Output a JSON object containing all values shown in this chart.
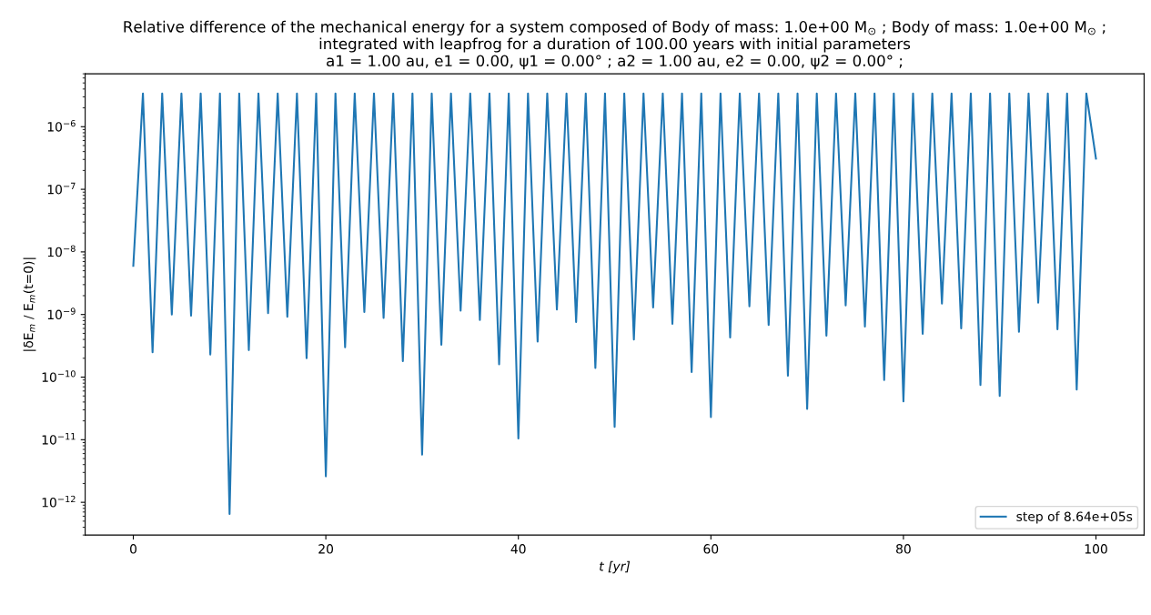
{
  "chart_data": {
    "type": "line",
    "title": "Relative difference of the mechanical energy for a system composed of Body of mass: 1.0e+00 M$_{⊙}$ ; Body of mass: 1.0e+00 M$_{⊙}$ ;\nintegrated with leapfrog for a duration of 100.00 years with initial parameters\na1 = 1.00 au, e1 = 0.00, ψ1 = 0.00° ; a2 = 1.00 au, e2 = 0.00, ψ2 = 0.00° ;",
    "xlabel": "t [yr]",
    "ylabel": "|δE$_{m}$ / E$_{m}$(t=0)|",
    "log": "y",
    "grid": false,
    "legend": "bottom right",
    "marker": "none",
    "line_style": "solid",
    "xlim": [
      -5,
      105
    ],
    "xticks": [
      0,
      20,
      40,
      60,
      80,
      100
    ],
    "ylim": [
      3e-13,
      7e-06
    ],
    "yticks": [
      {
        "value": 1e-12,
        "label": "10$^{−12}$"
      },
      {
        "value": 1e-11,
        "label": "10$^{−11}$"
      },
      {
        "value": 1e-10,
        "label": "10$^{−10}$"
      },
      {
        "value": 1e-09,
        "label": "10$^{−9}$"
      },
      {
        "value": 1e-08,
        "label": "10$^{−8}$"
      },
      {
        "value": 1e-07,
        "label": "10$^{−7}$"
      },
      {
        "value": 1e-06,
        "label": "10$^{−6}$"
      }
    ],
    "series": [
      {
        "name": "step of 8.64e+05s",
        "color": "#1f77b4",
        "x": [
          0,
          1,
          2,
          3,
          4,
          5,
          6,
          7,
          8,
          9,
          10,
          11,
          12,
          13,
          14,
          15,
          16,
          17,
          18,
          19,
          20,
          21,
          22,
          23,
          24,
          25,
          26,
          27,
          28,
          29,
          30,
          31,
          32,
          33,
          34,
          35,
          36,
          37,
          38,
          39,
          40,
          41,
          42,
          43,
          44,
          45,
          46,
          47,
          48,
          49,
          50,
          51,
          52,
          53,
          54,
          55,
          56,
          57,
          58,
          59,
          60,
          61,
          62,
          63,
          64,
          65,
          66,
          67,
          68,
          69,
          70,
          71,
          72,
          73,
          74,
          75,
          76,
          77,
          78,
          79,
          80,
          81,
          82,
          83,
          84,
          85,
          86,
          87,
          88,
          89,
          90,
          91,
          92,
          93,
          94,
          95,
          96,
          97,
          98,
          99,
          100
        ],
        "values": [
          6e-09,
          3.4e-06,
          2.5e-10,
          3.4e-06,
          1e-09,
          3.4e-06,
          9.6e-10,
          3.4e-06,
          2.3e-10,
          3.4e-06,
          6.5e-13,
          3.4e-06,
          2.7e-10,
          3.4e-06,
          1.05e-09,
          3.4e-06,
          9.2e-10,
          3.4e-06,
          2e-10,
          3.4e-06,
          2.6e-12,
          3.4e-06,
          3e-10,
          3.4e-06,
          1.1e-09,
          3.4e-06,
          8.8e-10,
          3.4e-06,
          1.8e-10,
          3.4e-06,
          5.8e-12,
          3.4e-06,
          3.3e-10,
          3.4e-06,
          1.15e-09,
          3.4e-06,
          8.2e-10,
          3.4e-06,
          1.6e-10,
          3.4e-06,
          1.05e-11,
          3.4e-06,
          3.7e-10,
          3.4e-06,
          1.2e-09,
          3.4e-06,
          7.6e-10,
          3.4e-06,
          1.4e-10,
          3.4e-06,
          1.6e-11,
          3.4e-06,
          4e-10,
          3.4e-06,
          1.3e-09,
          3.4e-06,
          7.1e-10,
          3.4e-06,
          1.2e-10,
          3.4e-06,
          2.3e-11,
          3.4e-06,
          4.3e-10,
          3.4e-06,
          1.35e-09,
          3.4e-06,
          6.8e-10,
          3.4e-06,
          1.05e-10,
          3.4e-06,
          3.1e-11,
          3.4e-06,
          4.6e-10,
          3.4e-06,
          1.4e-09,
          3.4e-06,
          6.4e-10,
          3.4e-06,
          9e-11,
          3.4e-06,
          4.1e-11,
          3.4e-06,
          4.9e-10,
          3.4e-06,
          1.5e-09,
          3.4e-06,
          6e-10,
          3.4e-06,
          7.5e-11,
          3.4e-06,
          5e-11,
          3.4e-06,
          5.3e-10,
          3.4e-06,
          1.55e-09,
          3.4e-06,
          5.8e-10,
          3.4e-06,
          6.3e-11,
          3.4e-06,
          3.1e-07
        ]
      }
    ]
  }
}
